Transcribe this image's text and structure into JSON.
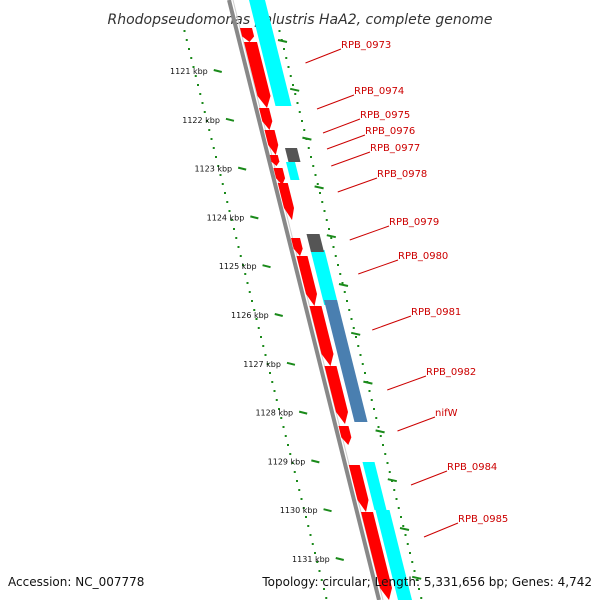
{
  "title": "Rhodopseudomonas palustris HaA2, complete genome",
  "footer": {
    "accession": "Accession: NC_007778",
    "summary": "Topology: circular; Length: 5,331,656 bp; Genes: 4,742"
  },
  "colors": {
    "forward_cds": "#ff0000",
    "reverse_cds": "#00ffff",
    "other_gene": "#555555",
    "highlight": "#4a7fb0",
    "backbone": "#888888",
    "tick": "#1a8a1a",
    "label": "#cc0000"
  },
  "kbp_labels": [
    "1121 kbp",
    "1122 kbp",
    "1123 kbp",
    "1124 kbp",
    "1125 kbp",
    "1126 kbp",
    "1127 kbp",
    "1128 kbp",
    "1129 kbp",
    "1130 kbp",
    "1131 kbp"
  ],
  "gene_labels": [
    "RPB_0973",
    "RPB_0974",
    "RPB_0975",
    "RPB_0976",
    "RPB_0977",
    "RPB_0978",
    "RPB_0979",
    "RPB_0980",
    "RPB_0981",
    "RPB_0982",
    "nifW",
    "RPB_0984",
    "RPB_0985"
  ]
}
